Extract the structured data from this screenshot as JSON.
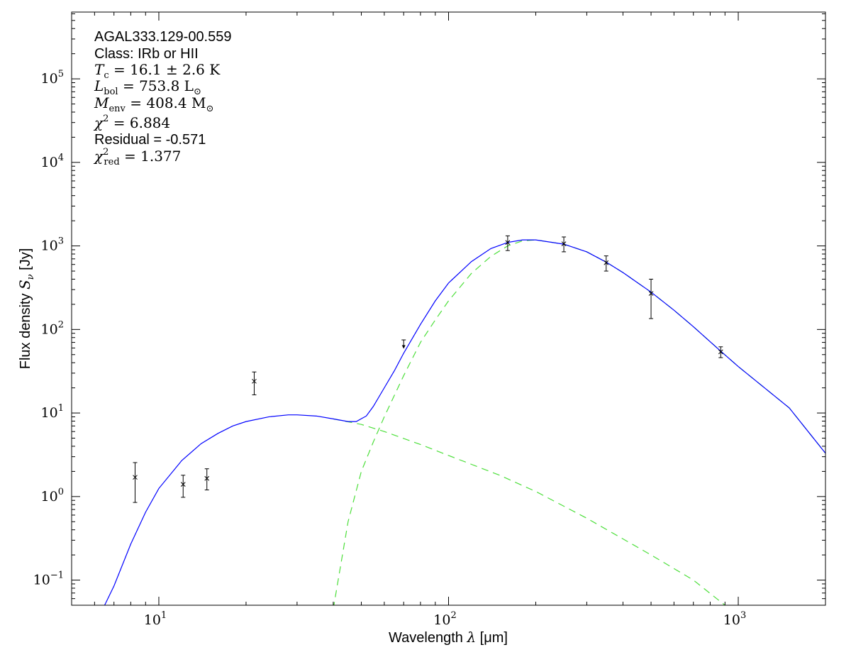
{
  "chart_data": {
    "type": "scatter",
    "log_x": true,
    "log_y": true,
    "xlim": [
      5,
      2000
    ],
    "ylim": [
      0.05,
      630000
    ],
    "grid": false,
    "xlabel_text": "Wavelength ",
    "xlabel_symbol": "λ",
    "xlabel_unit": " [μm]",
    "ylabel_text": "Flux density ",
    "ylabel_symbol": "S",
    "ylabel_sub": "ν",
    "ylabel_unit": " [Jy]",
    "x_ticks": [
      {
        "value": 10,
        "base": "10",
        "exp": "1"
      },
      {
        "value": 100,
        "base": "10",
        "exp": "2"
      },
      {
        "value": 1000,
        "base": "10",
        "exp": "3"
      }
    ],
    "y_ticks": [
      {
        "value": 0.1,
        "base": "10",
        "exp": "−1"
      },
      {
        "value": 1,
        "base": "10",
        "exp": "0"
      },
      {
        "value": 10,
        "base": "10",
        "exp": "1"
      },
      {
        "value": 100,
        "base": "10",
        "exp": "2"
      },
      {
        "value": 1000,
        "base": "10",
        "exp": "3"
      },
      {
        "value": 10000,
        "base": "10",
        "exp": "4"
      },
      {
        "value": 100000,
        "base": "10",
        "exp": "5"
      }
    ],
    "annotations": {
      "source": "AGAL333.129-00.559",
      "class_label": "Class: IRb or HII",
      "tc": "T_c = 16.1 ± 2.6 K",
      "lbol": "L_bol = 753.8 L_⊙",
      "menv": "M_env = 408.4 M_⊙",
      "chi2": "χ^2 = 6.884",
      "residual": "Residual = -0.571",
      "chi2red": "χ^2_red = 1.377"
    },
    "points": [
      {
        "x": 8.28,
        "y": 1.7,
        "ylo": 0.85,
        "yhi": 2.55
      },
      {
        "x": 12.13,
        "y": 1.4,
        "ylo": 0.98,
        "yhi": 1.8
      },
      {
        "x": 14.65,
        "y": 1.65,
        "ylo": 1.2,
        "yhi": 2.15
      },
      {
        "x": 21.34,
        "y": 24,
        "ylo": 16.5,
        "yhi": 31
      },
      {
        "x": 160,
        "y": 1100,
        "ylo": 880,
        "yhi": 1320
      },
      {
        "x": 250,
        "y": 1060,
        "ylo": 850,
        "yhi": 1280
      },
      {
        "x": 350,
        "y": 630,
        "ylo": 500,
        "yhi": 760
      },
      {
        "x": 500,
        "y": 270,
        "ylo": 135,
        "yhi": 400
      },
      {
        "x": 870,
        "y": 54,
        "ylo": 46,
        "yhi": 62
      }
    ],
    "upper_limits": [
      {
        "x": 70,
        "y": 75,
        "ylo": 60
      }
    ],
    "model_total": [
      [
        6.5,
        0.05
      ],
      [
        7,
        0.085
      ],
      [
        8,
        0.27
      ],
      [
        9,
        0.65
      ],
      [
        10,
        1.25
      ],
      [
        12,
        2.7
      ],
      [
        14,
        4.3
      ],
      [
        16,
        5.7
      ],
      [
        18,
        7.0
      ],
      [
        20,
        7.9
      ],
      [
        24,
        9.0
      ],
      [
        28,
        9.5
      ],
      [
        30,
        9.5
      ],
      [
        35,
        9.2
      ],
      [
        40,
        8.5
      ],
      [
        45,
        7.9
      ],
      [
        48,
        7.9
      ],
      [
        52,
        9.2
      ],
      [
        55,
        12
      ],
      [
        60,
        20
      ],
      [
        65,
        32
      ],
      [
        70,
        52
      ],
      [
        80,
        115
      ],
      [
        90,
        220
      ],
      [
        100,
        360
      ],
      [
        120,
        650
      ],
      [
        140,
        930
      ],
      [
        160,
        1100
      ],
      [
        180,
        1180
      ],
      [
        200,
        1180
      ],
      [
        250,
        1050
      ],
      [
        300,
        850
      ],
      [
        350,
        640
      ],
      [
        400,
        480
      ],
      [
        500,
        280
      ],
      [
        600,
        170
      ],
      [
        700,
        108
      ],
      [
        870,
        55
      ],
      [
        1000,
        36
      ],
      [
        1500,
        11.5
      ],
      [
        2000,
        3.3
      ]
    ],
    "model_components": [
      [
        [
          40,
          0.045
        ],
        [
          45,
          0.5
        ],
        [
          50,
          2.0
        ],
        [
          55,
          4.5
        ],
        [
          60,
          9
        ],
        [
          70,
          28
        ],
        [
          80,
          70
        ],
        [
          90,
          130
        ],
        [
          100,
          220
        ],
        [
          120,
          470
        ],
        [
          140,
          750
        ],
        [
          160,
          1000
        ],
        [
          180,
          1150
        ],
        [
          200,
          1180
        ],
        [
          250,
          1050
        ],
        [
          300,
          850
        ],
        [
          350,
          640
        ],
        [
          400,
          480
        ],
        [
          500,
          280
        ],
        [
          600,
          170
        ],
        [
          700,
          108
        ],
        [
          870,
          55
        ],
        [
          1000,
          36
        ],
        [
          1500,
          11.5
        ],
        [
          2000,
          3.3
        ]
      ],
      [
        [
          40,
          8.5
        ],
        [
          50,
          7.3
        ],
        [
          60,
          6.0
        ],
        [
          80,
          4.2
        ],
        [
          100,
          3.1
        ],
        [
          150,
          1.8
        ],
        [
          200,
          1.15
        ],
        [
          300,
          0.55
        ],
        [
          500,
          0.2
        ],
        [
          700,
          0.1
        ],
        [
          900,
          0.05
        ]
      ]
    ],
    "colors": {
      "model": "#0000ff",
      "components": "#4ddf3b",
      "points": "#000000"
    }
  }
}
